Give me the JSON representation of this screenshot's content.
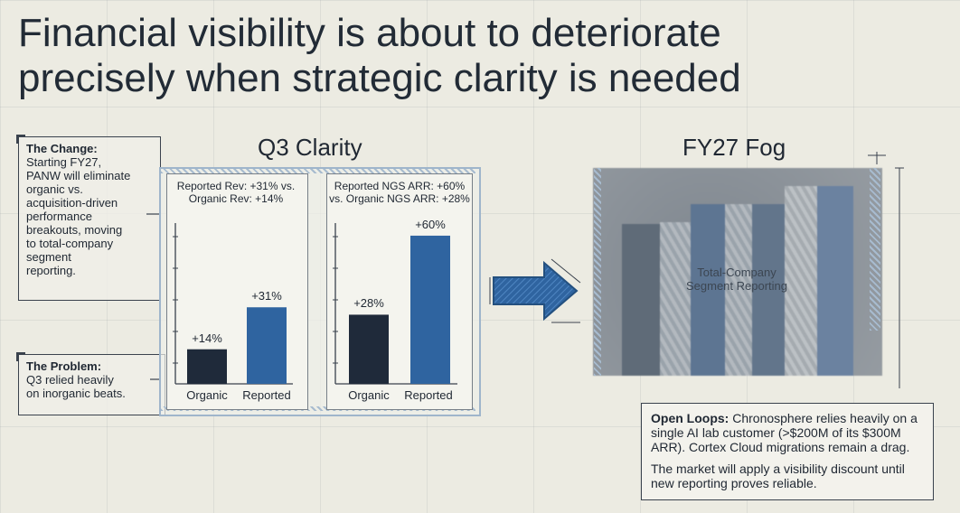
{
  "title_line1": "Financial visibility is about to deteriorate",
  "title_line2": "precisely when strategic clarity is needed",
  "change": {
    "heading": "The Change:",
    "lines": [
      "Starting FY27,",
      "PANW will eliminate",
      "organic vs.",
      "acquisition-driven",
      "performance",
      "breakouts, moving",
      "to total-company",
      "segment",
      "reporting."
    ]
  },
  "problem": {
    "heading": "The Problem:",
    "lines": [
      "Q3 relied heavily",
      "on inorganic beats."
    ]
  },
  "q3_title": "Q3 Clarity",
  "fy27_title": "FY27 Fog",
  "fog_label_line1": "Total-Company",
  "fog_label_line2": "Segment Reporting",
  "open_loops": {
    "heading": "Open Loops:",
    "text": "Chronosphere relies heavily on a single AI lab customer (>$200M of its $300M ARR). Cortex Cloud migrations remain a drag.",
    "text2": "The market will apply a visibility discount until new reporting proves reliable."
  },
  "colors": {
    "organic": "#1f2a3a",
    "reported": "#2f64a0",
    "fog": "#8f969d"
  },
  "chart_data": [
    {
      "type": "bar",
      "title": "Reported Rev: +31% vs. Organic Rev: +14%",
      "title_line1": "Reported Rev: +31% vs.",
      "title_line2": "Organic Rev: +14%",
      "categories": [
        "Organic",
        "Reported"
      ],
      "values": [
        14,
        31
      ],
      "data_labels": [
        "+14%",
        "+31%"
      ]
    },
    {
      "type": "bar",
      "title": "Reported NGS ARR: +60% vs. Organic NGS ARR: +28%",
      "title_line1": "Reported NGS ARR: +60%",
      "title_line2": "vs. Organic NGS ARR: +28%",
      "categories": [
        "Organic",
        "Reported"
      ],
      "values": [
        28,
        60
      ],
      "data_labels": [
        "+28%",
        "+60%"
      ]
    }
  ]
}
